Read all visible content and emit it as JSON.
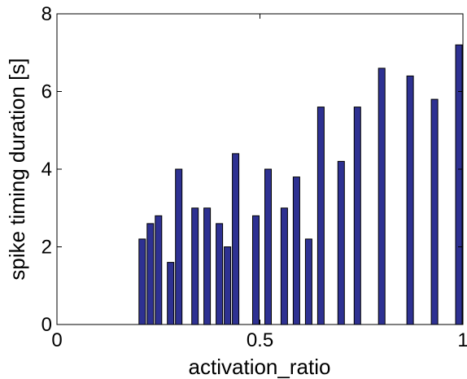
{
  "chart_data": {
    "type": "bar",
    "title": "",
    "xlabel": "activation_ratio",
    "ylabel": "spike timing duration [s]",
    "xlim": [
      0,
      1
    ],
    "ylim": [
      0,
      8
    ],
    "xticks": [
      0,
      0.5,
      1
    ],
    "yticks": [
      0,
      2,
      4,
      6,
      8
    ],
    "x": [
      0.21,
      0.23,
      0.25,
      0.28,
      0.3,
      0.34,
      0.37,
      0.4,
      0.42,
      0.44,
      0.49,
      0.52,
      0.56,
      0.59,
      0.62,
      0.65,
      0.7,
      0.74,
      0.8,
      0.87,
      0.93,
      0.99
    ],
    "values": [
      2.2,
      2.6,
      2.8,
      1.6,
      4.0,
      3.0,
      3.0,
      2.6,
      2.0,
      4.4,
      2.8,
      4.0,
      3.0,
      3.8,
      2.2,
      5.6,
      4.2,
      5.6,
      6.6,
      6.4,
      5.8,
      7.2
    ],
    "bar_color": "#2e3192",
    "grid": false
  }
}
